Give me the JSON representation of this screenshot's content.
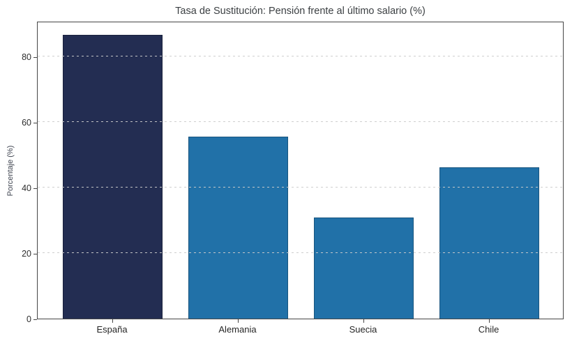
{
  "chart_data": {
    "type": "bar",
    "title": "Tasa de Sustitución: Pensión frente al último salario (%)",
    "categories": [
      "España",
      "Alemania",
      "Suecia",
      "Chile"
    ],
    "values": [
      86.5,
      55.5,
      30.8,
      46.2
    ],
    "bar_colors": [
      "#232d52",
      "#2171a8",
      "#2171a8",
      "#2171a8"
    ],
    "xlabel": "",
    "ylabel": "Porcentaje (%)",
    "ylim": [
      0,
      90.8
    ],
    "yticks": [
      0,
      20,
      40,
      60,
      80
    ],
    "grid": "horizontal-dashed-over-bars",
    "grid_color": "#cbcbcb",
    "legend": "none",
    "colors": {
      "background": "#ffffff",
      "spine": "#454545",
      "title_text": "#3c4043",
      "tick_text": "#2e2e2e",
      "bar_primary": "#232d52",
      "bar_secondary": "#2171a8"
    }
  }
}
